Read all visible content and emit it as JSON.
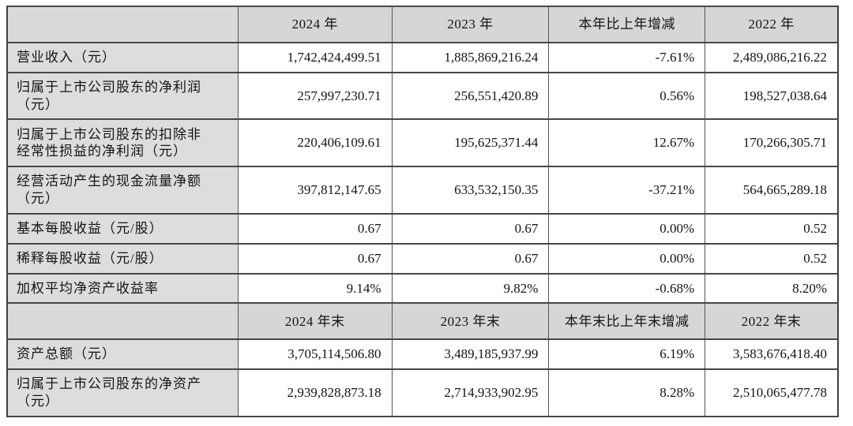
{
  "colors": {
    "header_bg": "#d6d6d6",
    "label_bg": "#dddddd",
    "cell_bg": "#ffffff",
    "border": "#474747",
    "text": "#141414"
  },
  "table": {
    "sections": [
      {
        "header": {
          "label": "",
          "cols": [
            "2024 年",
            "2023 年",
            "本年比上年增减",
            "2022 年"
          ]
        },
        "rows": [
          {
            "label": "营业收入（元）",
            "values": [
              "1,742,424,499.51",
              "1,885,869,216.24",
              "-7.61%",
              "2,489,086,216.22"
            ]
          },
          {
            "label": "归属于上市公司股东的净利润\n（元）",
            "values": [
              "257,997,230.71",
              "256,551,420.89",
              "0.56%",
              "198,527,038.64"
            ]
          },
          {
            "label": "归属于上市公司股东的扣除非\n经常性损益的净利润（元）",
            "values": [
              "220,406,109.61",
              "195,625,371.44",
              "12.67%",
              "170,266,305.71"
            ]
          },
          {
            "label": "经营活动产生的现金流量净额\n（元）",
            "values": [
              "397,812,147.65",
              "633,532,150.35",
              "-37.21%",
              "564,665,289.18"
            ]
          },
          {
            "label": "基本每股收益（元/股）",
            "values": [
              "0.67",
              "0.67",
              "0.00%",
              "0.52"
            ]
          },
          {
            "label": "稀释每股收益（元/股）",
            "values": [
              "0.67",
              "0.67",
              "0.00%",
              "0.52"
            ]
          },
          {
            "label": "加权平均净资产收益率",
            "values": [
              "9.14%",
              "9.82%",
              "-0.68%",
              "8.20%"
            ]
          }
        ]
      },
      {
        "header": {
          "label": "",
          "cols": [
            "2024 年末",
            "2023 年末",
            "本年末比上年末增减",
            "2022 年末"
          ]
        },
        "rows": [
          {
            "label": "资产总额（元）",
            "values": [
              "3,705,114,506.80",
              "3,489,185,937.99",
              "6.19%",
              "3,583,676,418.40"
            ]
          },
          {
            "label": "归属于上市公司股东的净资产\n（元）",
            "values": [
              "2,939,828,873.18",
              "2,714,933,902.95",
              "8.28%",
              "2,510,065,477.78"
            ]
          }
        ]
      }
    ]
  }
}
